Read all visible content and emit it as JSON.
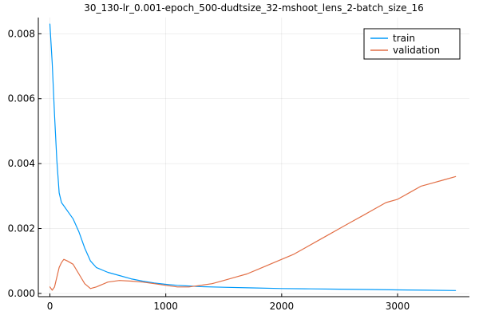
{
  "chart_data": {
    "type": "line",
    "title": "30_130-lr_0.001-epoch_500-dudtsize_32-mshoot_lens_2-batch_size_16",
    "xlabel": "",
    "ylabel": "",
    "xlim": [
      -100,
      3620
    ],
    "ylim": [
      -0.0001,
      0.0085
    ],
    "x_ticks": [
      0,
      1000,
      2000,
      3000
    ],
    "x_tick_labels": [
      "0",
      "1000",
      "2000",
      "3000"
    ],
    "y_ticks": [
      0.0,
      0.002,
      0.004,
      0.006,
      0.008
    ],
    "y_tick_labels": [
      "0.000",
      "0.002",
      "0.004",
      "0.006",
      "0.008"
    ],
    "grid": true,
    "legend_position": "top-right",
    "series": [
      {
        "name": "train",
        "color": "#009AFA",
        "x": [
          0,
          20,
          40,
          60,
          80,
          100,
          120,
          160,
          200,
          250,
          300,
          350,
          400,
          500,
          600,
          700,
          800,
          900,
          1000,
          1100,
          1200,
          1300,
          1500,
          1750,
          2000,
          2250,
          2500,
          2750,
          3000,
          3250,
          3500
        ],
        "values": [
          0.0083,
          0.0071,
          0.0055,
          0.0041,
          0.0031,
          0.0028,
          0.0027,
          0.0025,
          0.0023,
          0.0019,
          0.0014,
          0.001,
          0.0008,
          0.00065,
          0.00055,
          0.00045,
          0.00038,
          0.00032,
          0.00028,
          0.00025,
          0.00023,
          0.00021,
          0.00019,
          0.00017,
          0.00015,
          0.00014,
          0.00013,
          0.00012,
          0.00011,
          0.0001,
          9e-05
        ]
      },
      {
        "name": "validation",
        "color": "#E26F46",
        "x": [
          0,
          20,
          40,
          60,
          80,
          100,
          120,
          150,
          200,
          250,
          300,
          350,
          400,
          500,
          600,
          700,
          800,
          900,
          1000,
          1100,
          1200,
          1300,
          1400,
          1500,
          1600,
          1700,
          1800,
          1900,
          2000,
          2100,
          2200,
          2300,
          2400,
          2500,
          2600,
          2700,
          2800,
          2900,
          3000,
          3100,
          3200,
          3300,
          3400,
          3500
        ],
        "values": [
          0.0002,
          0.0001,
          0.0002,
          0.0005,
          0.0008,
          0.00095,
          0.00105,
          0.001,
          0.0009,
          0.0006,
          0.0003,
          0.00015,
          0.0002,
          0.00035,
          0.0004,
          0.00038,
          0.00035,
          0.0003,
          0.00025,
          0.0002,
          0.0002,
          0.00025,
          0.0003,
          0.0004,
          0.0005,
          0.0006,
          0.00075,
          0.0009,
          0.00105,
          0.0012,
          0.0014,
          0.0016,
          0.0018,
          0.002,
          0.0022,
          0.0024,
          0.0026,
          0.0028,
          0.0029,
          0.0031,
          0.0033,
          0.0034,
          0.0035,
          0.0036
        ]
      }
    ]
  }
}
